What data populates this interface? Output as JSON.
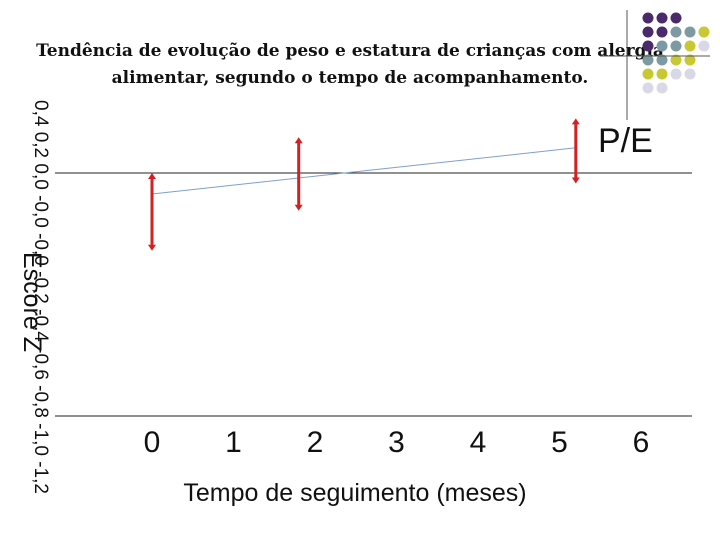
{
  "chart_data": {
    "type": "line",
    "title_line1": "Tendência de evolução de peso e estatura de crianças com alergia",
    "title_line2": "alimentar, segundo o tempo de acompanhamento.",
    "xlabel": "Tempo de seguimento (meses)",
    "ylabel": "Escore Z",
    "x_ticks": [
      "0",
      "1",
      "2",
      "3",
      "4",
      "5",
      "6"
    ],
    "y_ticks": [
      "0,4",
      "0,2",
      "0,0",
      "-0,0",
      "-0,0",
      "-0,2",
      "-0,4",
      "-0,6",
      "-0,8",
      "-1,0",
      "-1,2"
    ],
    "xlim": [
      0,
      6
    ],
    "ylim": [
      -1.2,
      0.4
    ],
    "series": [
      {
        "name": "P/E",
        "trend_x": [
          0,
          5.2
        ],
        "trend_y": [
          -0.1,
          0.12
        ],
        "error_bars": [
          {
            "x": 0,
            "low": -0.37,
            "high": 0.0
          },
          {
            "x": 1.8,
            "low": -0.18,
            "high": 0.17
          },
          {
            "x": 5.2,
            "low": -0.05,
            "high": 0.26
          }
        ]
      }
    ],
    "colors": {
      "trend_line": "#7f9fcf",
      "error_bars": "#d42020",
      "axis": "#222222"
    }
  },
  "decor_dots": [
    [
      "#4b2a6b",
      "#4b2a6b",
      "#4b2a6b",
      null,
      null
    ],
    [
      "#4b2a6b",
      "#4b2a6b",
      "#7d9aa4",
      "#7d9aa4",
      "#c8c832"
    ],
    [
      "#4b2a6b",
      "#7d9aa4",
      "#7d9aa4",
      "#c8c832",
      "#d8d8e6"
    ],
    [
      "#7d9aa4",
      "#7d9aa4",
      "#c8c832",
      "#c8c832",
      null
    ],
    [
      "#c8c832",
      "#c8c832",
      "#d8d8e6",
      "#d8d8e6",
      null
    ],
    [
      "#d8d8e6",
      "#d8d8e6",
      null,
      null,
      null
    ]
  ]
}
